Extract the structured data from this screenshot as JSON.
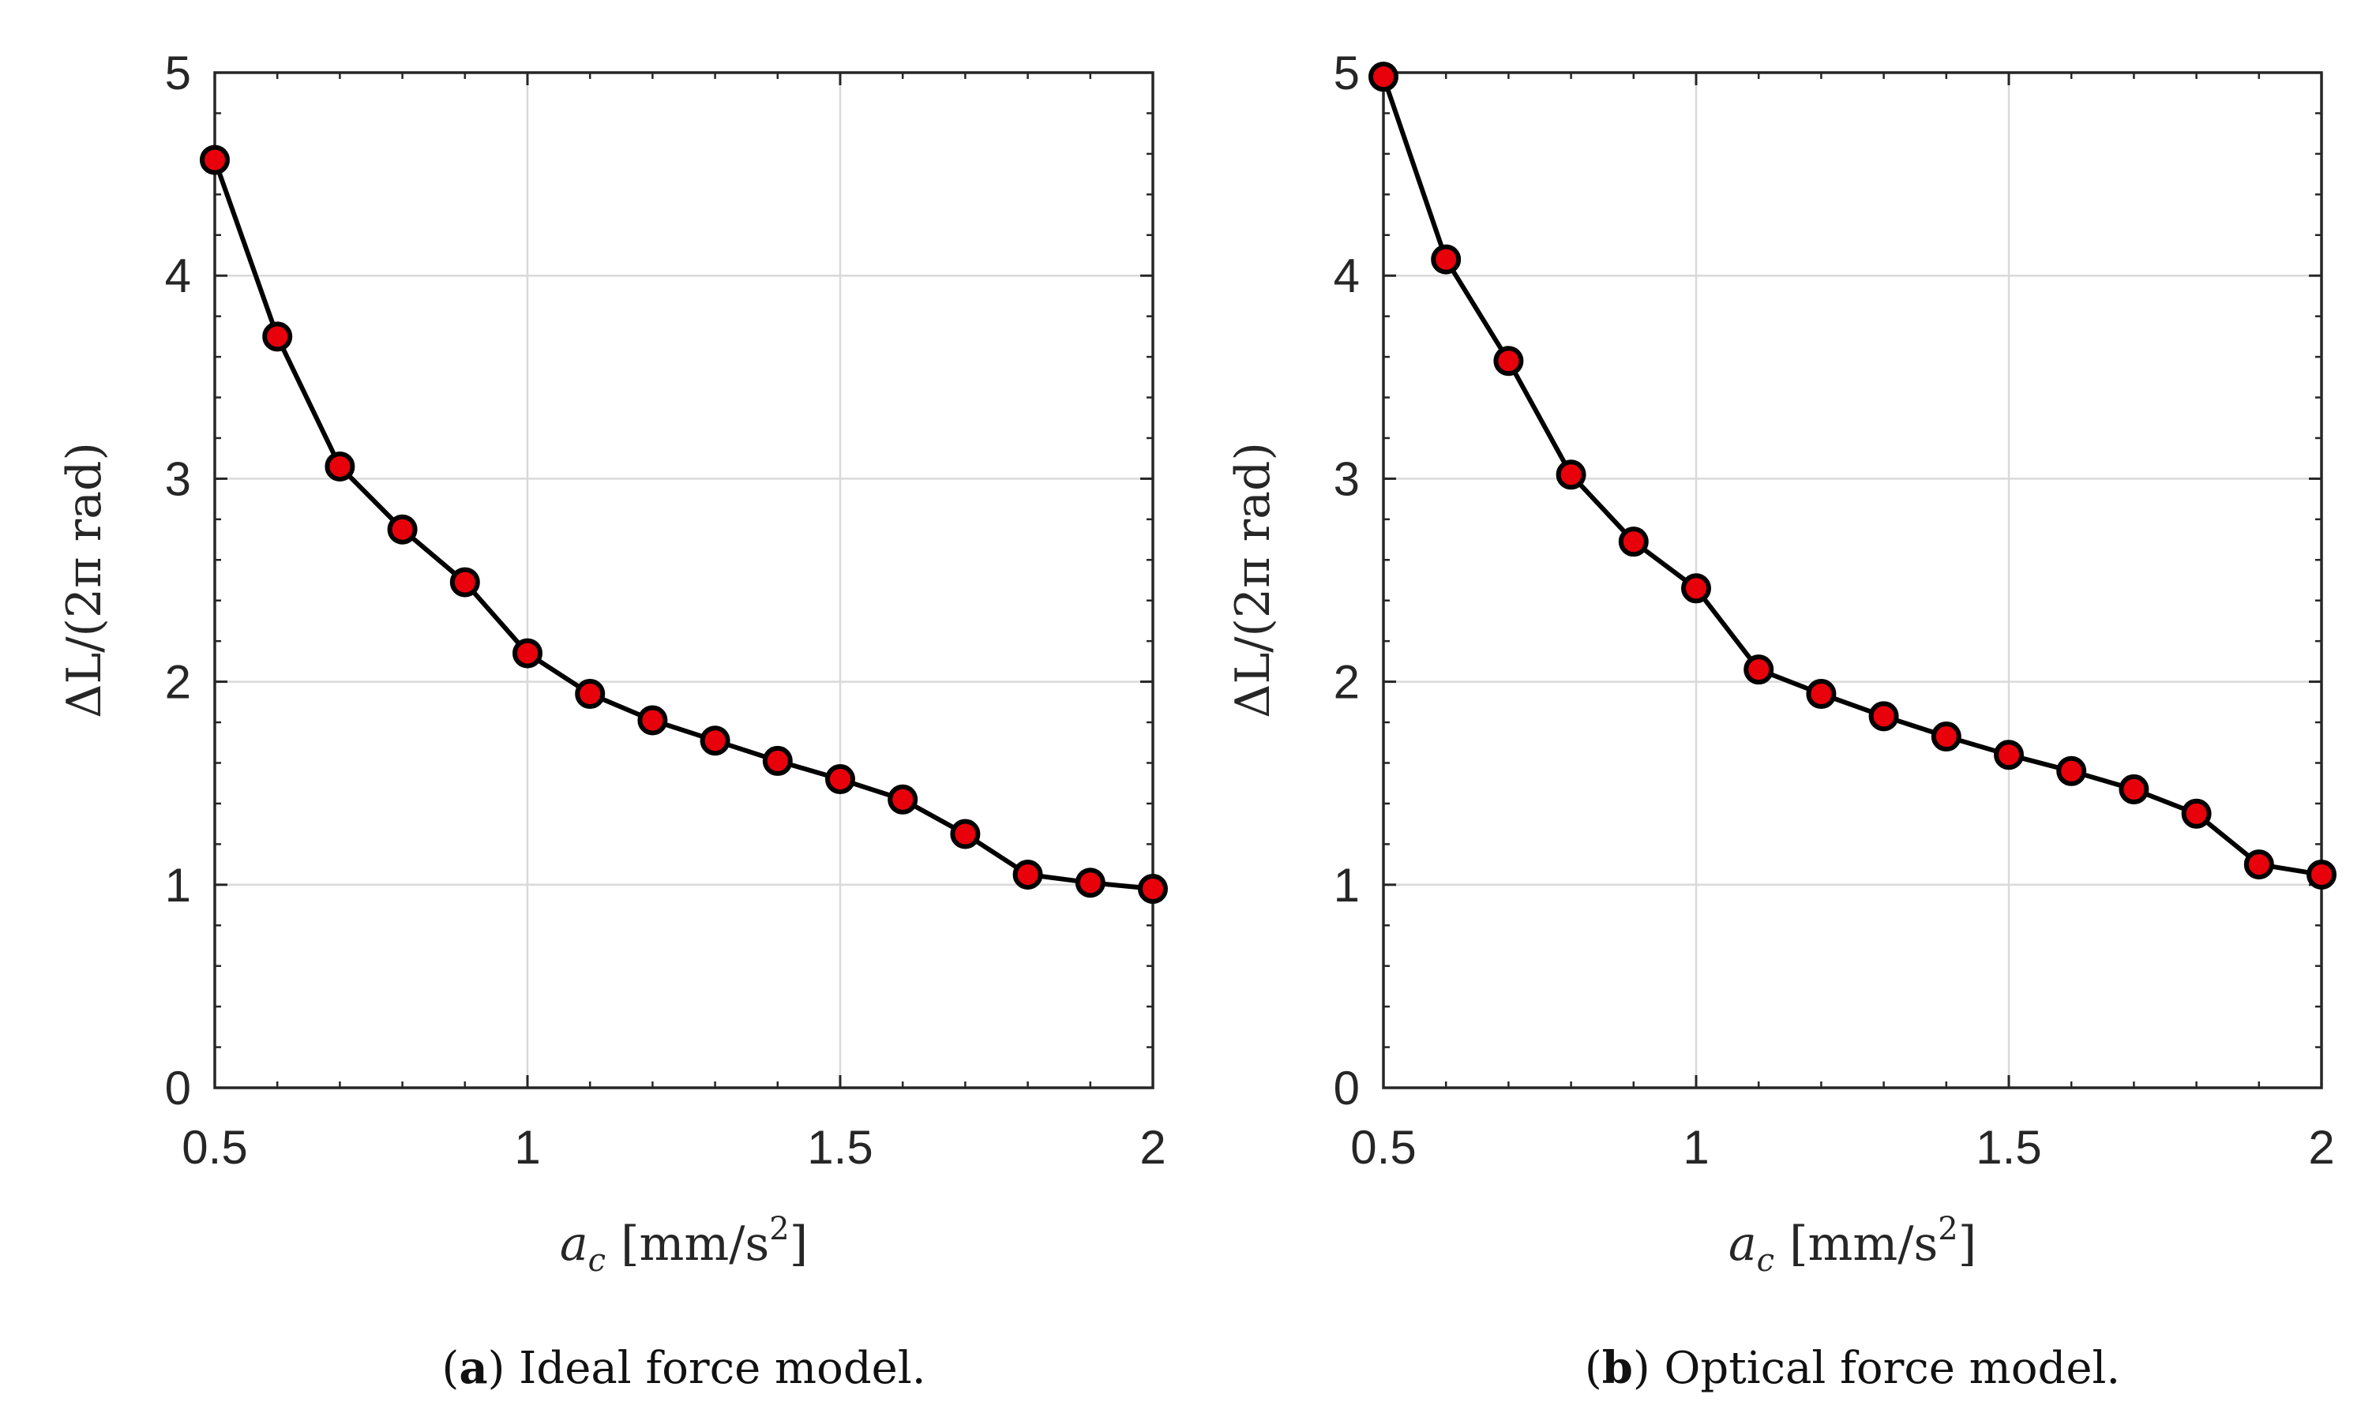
{
  "figure": {
    "colors": {
      "line": "#000000",
      "marker_fill": "#e8000b",
      "marker_edge": "#000000",
      "grid": "#d9d9d9",
      "axis": "#262626"
    }
  },
  "chart_data": [
    {
      "type": "line",
      "panel": "a",
      "caption_letter": "a",
      "caption_text": " Ideal force model.",
      "xlabel_symbol": "a",
      "xlabel_subscript": "c",
      "xlabel_units_pre": "[mm/s",
      "xlabel_units_sup": "2",
      "xlabel_units_post": "]",
      "ylabel": "ΔL/(2π rad)",
      "xlim": [
        0.5,
        2
      ],
      "ylim": [
        0,
        5
      ],
      "xticks": [
        0.5,
        1,
        1.5,
        2
      ],
      "xtick_labels": [
        "0.5",
        "1",
        "1.5",
        "2"
      ],
      "yticks": [
        0,
        1,
        2,
        3,
        4,
        5
      ],
      "ytick_labels": [
        "0",
        "1",
        "2",
        "3",
        "4",
        "5"
      ],
      "grid": true,
      "x": [
        0.5,
        0.6,
        0.7,
        0.8,
        0.9,
        1.0,
        1.1,
        1.2,
        1.3,
        1.4,
        1.5,
        1.6,
        1.7,
        1.8,
        1.9,
        2.0
      ],
      "y": [
        4.57,
        3.7,
        3.06,
        2.75,
        2.49,
        2.14,
        1.94,
        1.81,
        1.71,
        1.61,
        1.52,
        1.42,
        1.25,
        1.05,
        1.01,
        0.98
      ]
    },
    {
      "type": "line",
      "panel": "b",
      "caption_letter": "b",
      "caption_text": " Optical force model.",
      "xlabel_symbol": "a",
      "xlabel_subscript": "c",
      "xlabel_units_pre": "[mm/s",
      "xlabel_units_sup": "2",
      "xlabel_units_post": "]",
      "ylabel": "ΔL/(2π rad)",
      "xlim": [
        0.5,
        2
      ],
      "ylim": [
        0,
        5
      ],
      "xticks": [
        0.5,
        1,
        1.5,
        2
      ],
      "xtick_labels": [
        "0.5",
        "1",
        "1.5",
        "2"
      ],
      "yticks": [
        0,
        1,
        2,
        3,
        4,
        5
      ],
      "ytick_labels": [
        "0",
        "1",
        "2",
        "3",
        "4",
        "5"
      ],
      "grid": true,
      "x": [
        0.5,
        0.6,
        0.7,
        0.8,
        0.9,
        1.0,
        1.1,
        1.2,
        1.3,
        1.4,
        1.5,
        1.6,
        1.7,
        1.8,
        1.9,
        2.0
      ],
      "y": [
        4.98,
        4.08,
        3.58,
        3.02,
        2.69,
        2.46,
        2.06,
        1.94,
        1.83,
        1.73,
        1.64,
        1.56,
        1.47,
        1.35,
        1.1,
        1.05
      ]
    }
  ]
}
